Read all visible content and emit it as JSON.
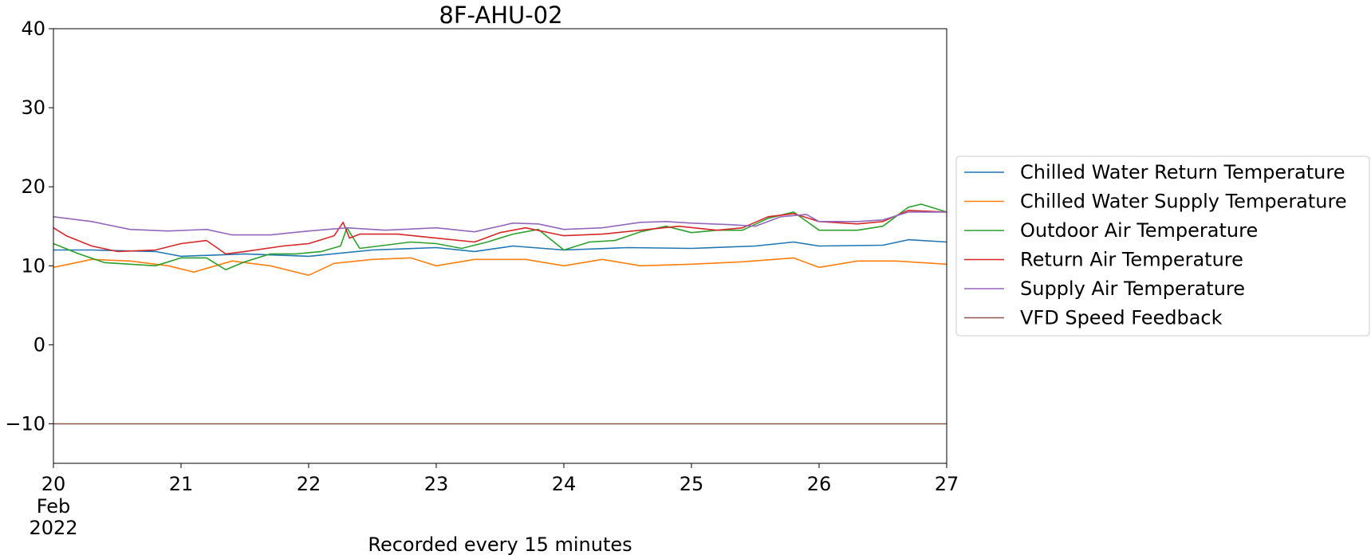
{
  "chart_data": {
    "type": "line",
    "title": "8F-AHU-02",
    "xlabel": "Recorded every 15 minutes",
    "ylabel": "",
    "xlim": [
      20,
      27
    ],
    "ylim": [
      -15,
      40
    ],
    "x_ticks": [
      {
        "value": 20,
        "label": "20",
        "sublabel1": "Feb",
        "sublabel2": "2022"
      },
      {
        "value": 21,
        "label": "21"
      },
      {
        "value": 22,
        "label": "22"
      },
      {
        "value": 23,
        "label": "23"
      },
      {
        "value": 24,
        "label": "24"
      },
      {
        "value": 25,
        "label": "25"
      },
      {
        "value": 26,
        "label": "26"
      },
      {
        "value": 27,
        "label": "27"
      }
    ],
    "y_ticks": [
      {
        "value": 40,
        "label": "40"
      },
      {
        "value": 30,
        "label": "30"
      },
      {
        "value": 20,
        "label": "20"
      },
      {
        "value": 10,
        "label": "10"
      },
      {
        "value": 0,
        "label": "0"
      },
      {
        "value": -10,
        "label": "−10"
      }
    ],
    "grid": false,
    "legend_position": "right",
    "series": [
      {
        "name": "Chilled Water Return Temperature",
        "color": "#1f77b4",
        "x": [
          20,
          20.3,
          20.8,
          21.0,
          21.5,
          22.0,
          22.5,
          23.0,
          23.3,
          23.6,
          24.0,
          24.5,
          25.0,
          25.5,
          25.8,
          26.0,
          26.5,
          26.7,
          27.0
        ],
        "y": [
          12.0,
          12.0,
          11.8,
          11.2,
          11.5,
          11.2,
          12.0,
          12.3,
          11.8,
          12.5,
          12.0,
          12.3,
          12.2,
          12.5,
          13.0,
          12.5,
          12.6,
          13.3,
          13.0
        ]
      },
      {
        "name": "Chilled Water Supply Temperature",
        "color": "#ff7f0e",
        "x": [
          20,
          20.3,
          20.6,
          20.9,
          21.1,
          21.4,
          21.7,
          22.0,
          22.2,
          22.5,
          22.8,
          23.0,
          23.3,
          23.7,
          24.0,
          24.3,
          24.6,
          25.0,
          25.4,
          25.8,
          26.0,
          26.3,
          26.6,
          27.0
        ],
        "y": [
          9.8,
          10.8,
          10.6,
          10.0,
          9.2,
          10.6,
          10.0,
          8.8,
          10.3,
          10.8,
          11.0,
          10.0,
          10.8,
          10.8,
          10.0,
          10.8,
          10.0,
          10.2,
          10.5,
          11.0,
          9.8,
          10.6,
          10.6,
          10.2
        ]
      },
      {
        "name": "Outdoor Air Temperature",
        "color": "#2ca02c",
        "x": [
          20,
          20.2,
          20.4,
          20.6,
          20.8,
          21.0,
          21.2,
          21.35,
          21.5,
          21.7,
          21.9,
          22.1,
          22.25,
          22.3,
          22.4,
          22.6,
          22.8,
          23.0,
          23.2,
          23.4,
          23.6,
          23.8,
          24.0,
          24.2,
          24.4,
          24.6,
          24.8,
          25.0,
          25.2,
          25.4,
          25.6,
          25.8,
          26.0,
          26.3,
          26.5,
          26.7,
          26.8,
          27.0
        ],
        "y": [
          12.8,
          11.5,
          10.4,
          10.2,
          10.0,
          11.0,
          11.0,
          9.5,
          10.5,
          11.5,
          11.5,
          11.8,
          12.5,
          14.8,
          12.2,
          12.6,
          13.0,
          12.8,
          12.2,
          13.0,
          14.0,
          14.6,
          12.0,
          13.0,
          13.2,
          14.3,
          15.0,
          14.2,
          14.5,
          14.5,
          16.0,
          16.8,
          14.5,
          14.5,
          15.0,
          17.4,
          17.8,
          16.8
        ]
      },
      {
        "name": "Return Air Temperature",
        "color": "#d62728",
        "x": [
          20,
          20.1,
          20.3,
          20.5,
          20.8,
          21.0,
          21.2,
          21.35,
          21.5,
          21.8,
          22.0,
          22.2,
          22.27,
          22.32,
          22.4,
          22.7,
          23.0,
          23.3,
          23.5,
          23.7,
          24.0,
          24.3,
          24.6,
          24.9,
          25.2,
          25.4,
          25.6,
          25.8,
          26.0,
          26.3,
          26.5,
          26.7,
          27.0
        ],
        "y": [
          14.8,
          13.8,
          12.5,
          11.8,
          12.0,
          12.8,
          13.2,
          11.5,
          11.8,
          12.5,
          12.8,
          13.8,
          15.5,
          13.5,
          14.0,
          14.0,
          13.5,
          13.0,
          14.2,
          14.8,
          13.8,
          14.0,
          14.5,
          15.0,
          14.5,
          14.8,
          16.2,
          16.6,
          15.6,
          15.3,
          15.6,
          17.0,
          16.8
        ]
      },
      {
        "name": "Supply Air Temperature",
        "color": "#9467bd",
        "x": [
          20,
          20.3,
          20.6,
          20.9,
          21.2,
          21.4,
          21.7,
          22.0,
          22.3,
          22.6,
          23.0,
          23.3,
          23.6,
          23.8,
          24.0,
          24.3,
          24.6,
          24.8,
          25.0,
          25.3,
          25.5,
          25.7,
          25.9,
          26.0,
          26.3,
          26.5,
          26.7,
          27.0
        ],
        "y": [
          16.2,
          15.6,
          14.6,
          14.4,
          14.6,
          13.9,
          13.9,
          14.4,
          14.8,
          14.5,
          14.8,
          14.3,
          15.4,
          15.3,
          14.6,
          14.8,
          15.5,
          15.6,
          15.4,
          15.2,
          15.0,
          16.2,
          16.5,
          15.6,
          15.6,
          15.8,
          16.8,
          16.8
        ]
      },
      {
        "name": "VFD Speed Feedback",
        "color": "#8c564b",
        "x": [
          20,
          27
        ],
        "y": [
          -10,
          -10
        ]
      }
    ]
  }
}
